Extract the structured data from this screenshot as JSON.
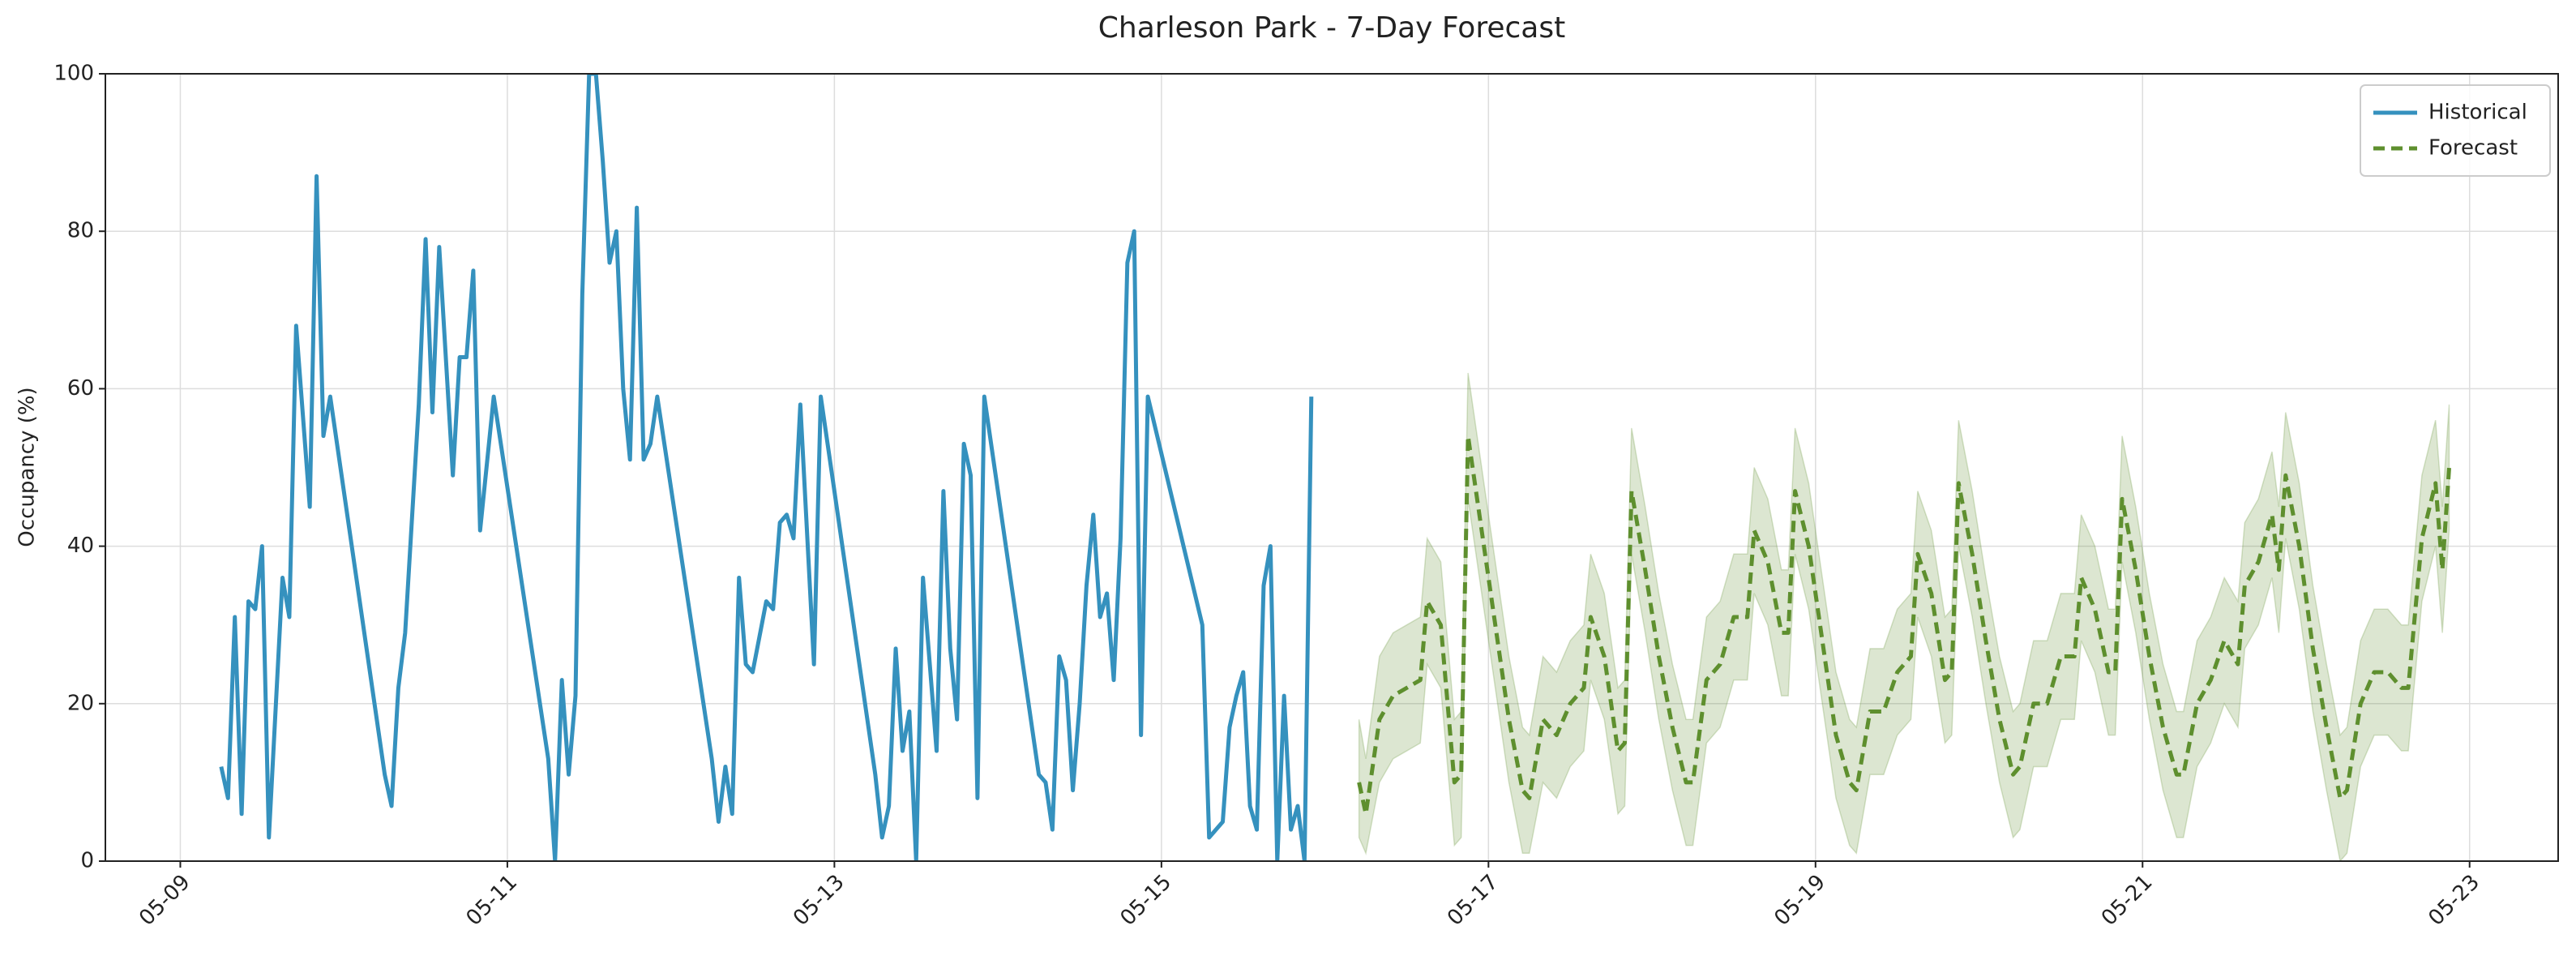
{
  "chart_data": {
    "type": "line",
    "title": "Charleson Park - 7-Day Forecast",
    "ylabel": "Occupancy (%)",
    "xlim": [
      "05-08 13:00",
      "05-23 13:00"
    ],
    "xticks": [
      "05-09",
      "05-11",
      "05-13",
      "05-15",
      "05-17",
      "05-19",
      "05-21",
      "05-23"
    ],
    "ylim": [
      0,
      100
    ],
    "yticks": [
      0,
      20,
      40,
      60,
      80,
      100
    ],
    "grid": true,
    "legend": "upper right",
    "series": [
      {
        "name": "Historical",
        "color": "#3591be",
        "style": "solid",
        "x": [
          "05-09 06:00",
          "05-09 07:00",
          "05-09 08:00",
          "05-09 09:00",
          "05-09 10:00",
          "05-09 11:00",
          "05-09 12:00",
          "05-09 13:00",
          "05-09 15:00",
          "05-09 16:00",
          "05-09 17:00",
          "05-09 19:00",
          "05-09 20:00",
          "05-09 21:00",
          "05-09 22:00",
          "05-10 06:00",
          "05-10 07:00",
          "05-10 08:00",
          "05-10 09:00",
          "05-10 11:00",
          "05-10 12:00",
          "05-10 13:00",
          "05-10 14:00",
          "05-10 16:00",
          "05-10 17:00",
          "05-10 18:00",
          "05-10 19:00",
          "05-10 20:00",
          "05-10 22:00",
          "05-11 06:00",
          "05-11 07:00",
          "05-11 08:00",
          "05-11 09:00",
          "05-11 10:00",
          "05-11 11:00",
          "05-11 12:00",
          "05-11 13:00",
          "05-11 14:00",
          "05-11 15:00",
          "05-11 16:00",
          "05-11 17:00",
          "05-11 18:00",
          "05-11 19:00",
          "05-11 20:00",
          "05-11 21:00",
          "05-11 22:00",
          "05-12 06:00",
          "05-12 07:00",
          "05-12 08:00",
          "05-12 09:00",
          "05-12 10:00",
          "05-12 11:00",
          "05-12 12:00",
          "05-12 14:00",
          "05-12 15:00",
          "05-12 16:00",
          "05-12 17:00",
          "05-12 18:00",
          "05-12 19:00",
          "05-12 21:00",
          "05-12 22:00",
          "05-13 06:00",
          "05-13 07:00",
          "05-13 08:00",
          "05-13 09:00",
          "05-13 10:00",
          "05-13 11:00",
          "05-13 12:00",
          "05-13 13:00",
          "05-13 15:00",
          "05-13 16:00",
          "05-13 17:00",
          "05-13 18:00",
          "05-13 19:00",
          "05-13 20:00",
          "05-13 21:00",
          "05-13 22:00",
          "05-14 06:00",
          "05-14 07:00",
          "05-14 08:00",
          "05-14 09:00",
          "05-14 10:00",
          "05-14 11:00",
          "05-14 12:00",
          "05-14 13:00",
          "05-14 14:00",
          "05-14 15:00",
          "05-14 16:00",
          "05-14 17:00",
          "05-14 18:00",
          "05-14 19:00",
          "05-14 20:00",
          "05-14 21:00",
          "05-14 22:00",
          "05-15 06:00",
          "05-15 07:00",
          "05-15 09:00",
          "05-15 10:00",
          "05-15 11:00",
          "05-15 12:00",
          "05-15 13:00",
          "05-15 14:00",
          "05-15 15:00",
          "05-15 16:00",
          "05-15 17:00",
          "05-15 18:00",
          "05-15 19:00",
          "05-15 20:00",
          "05-15 21:00",
          "05-15 22:00"
        ],
        "values": [
          12,
          8,
          31,
          6,
          33,
          32,
          40,
          3,
          36,
          31,
          68,
          45,
          87,
          54,
          59,
          11,
          7,
          22,
          29,
          58,
          79,
          57,
          78,
          49,
          64,
          64,
          75,
          42,
          59,
          13,
          0,
          23,
          11,
          21,
          72,
          100,
          100,
          89,
          76,
          80,
          60,
          51,
          83,
          51,
          53,
          59,
          13,
          5,
          12,
          6,
          36,
          25,
          24,
          33,
          32,
          43,
          44,
          41,
          58,
          25,
          59,
          11,
          3,
          7,
          27,
          14,
          19,
          0,
          36,
          14,
          47,
          27,
          18,
          53,
          49,
          8,
          59,
          11,
          10,
          4,
          26,
          23,
          9,
          20,
          35,
          44,
          31,
          34,
          23,
          41,
          76,
          80,
          16,
          59,
          30,
          3,
          5,
          17,
          21,
          24,
          7,
          4,
          35,
          40,
          0,
          21,
          4,
          7,
          0,
          59
        ]
      },
      {
        "name": "Forecast",
        "color": "#5e8f2e",
        "style": "dashed",
        "x": [
          "05-16 05:00",
          "05-16 06:00",
          "05-16 08:00",
          "05-16 10:00",
          "05-16 12:00",
          "05-16 14:00",
          "05-16 15:00",
          "05-16 17:00",
          "05-16 19:00",
          "05-16 20:00",
          "05-16 21:00",
          "05-16 23:00",
          "05-17 01:00",
          "05-17 03:00",
          "05-17 05:00",
          "05-17 06:00",
          "05-17 08:00",
          "05-17 10:00",
          "05-17 12:00",
          "05-17 14:00",
          "05-17 15:00",
          "05-17 17:00",
          "05-17 19:00",
          "05-17 20:00",
          "05-17 21:00",
          "05-17 23:00",
          "05-18 01:00",
          "05-18 03:00",
          "05-18 05:00",
          "05-18 06:00",
          "05-18 08:00",
          "05-18 10:00",
          "05-18 12:00",
          "05-18 14:00",
          "05-18 15:00",
          "05-18 17:00",
          "05-18 19:00",
          "05-18 20:00",
          "05-18 21:00",
          "05-18 23:00",
          "05-19 01:00",
          "05-19 03:00",
          "05-19 05:00",
          "05-19 06:00",
          "05-19 08:00",
          "05-19 10:00",
          "05-19 12:00",
          "05-19 14:00",
          "05-19 15:00",
          "05-19 17:00",
          "05-19 19:00",
          "05-19 20:00",
          "05-19 21:00",
          "05-19 23:00",
          "05-20 01:00",
          "05-20 03:00",
          "05-20 05:00",
          "05-20 06:00",
          "05-20 08:00",
          "05-20 10:00",
          "05-20 12:00",
          "05-20 14:00",
          "05-20 15:00",
          "05-20 17:00",
          "05-20 19:00",
          "05-20 20:00",
          "05-20 21:00",
          "05-20 23:00",
          "05-21 01:00",
          "05-21 03:00",
          "05-21 05:00",
          "05-21 06:00",
          "05-21 08:00",
          "05-21 10:00",
          "05-21 12:00",
          "05-21 14:00",
          "05-21 15:00",
          "05-21 17:00",
          "05-21 19:00",
          "05-21 20:00",
          "05-21 21:00",
          "05-21 23:00",
          "05-22 01:00",
          "05-22 03:00",
          "05-22 05:00",
          "05-22 06:00",
          "05-22 08:00",
          "05-22 10:00",
          "05-22 12:00",
          "05-22 14:00",
          "05-22 15:00",
          "05-22 17:00",
          "05-22 19:00",
          "05-22 20:00",
          "05-22 21:00"
        ],
        "values": [
          10,
          6,
          18,
          21,
          22,
          23,
          33,
          30,
          10,
          11,
          54,
          42,
          30,
          18,
          9,
          8,
          18,
          16,
          20,
          22,
          31,
          26,
          14,
          15,
          47,
          37,
          26,
          17,
          10,
          10,
          23,
          25,
          31,
          31,
          42,
          38,
          29,
          29,
          47,
          40,
          28,
          16,
          10,
          9,
          19,
          19,
          24,
          26,
          39,
          34,
          23,
          24,
          48,
          39,
          28,
          18,
          11,
          12,
          20,
          20,
          26,
          26,
          36,
          32,
          24,
          24,
          46,
          37,
          26,
          17,
          11,
          11,
          20,
          23,
          28,
          25,
          35,
          38,
          44,
          37,
          49,
          40,
          27,
          17,
          8,
          9,
          20,
          24,
          24,
          22,
          22,
          41,
          48,
          37,
          50
        ],
        "lower": [
          3,
          1,
          10,
          13,
          14,
          15,
          25,
          22,
          2,
          3,
          46,
          34,
          22,
          10,
          1,
          1,
          10,
          8,
          12,
          14,
          23,
          18,
          6,
          7,
          39,
          29,
          18,
          9,
          2,
          2,
          15,
          17,
          23,
          23,
          34,
          30,
          21,
          21,
          39,
          32,
          20,
          8,
          2,
          1,
          11,
          11,
          16,
          18,
          31,
          26,
          15,
          16,
          40,
          31,
          20,
          10,
          3,
          4,
          12,
          12,
          18,
          18,
          28,
          24,
          16,
          16,
          38,
          29,
          18,
          9,
          3,
          3,
          12,
          15,
          20,
          17,
          27,
          30,
          36,
          29,
          41,
          32,
          19,
          9,
          0,
          1,
          12,
          16,
          16,
          14,
          14,
          33,
          40,
          29,
          42
        ],
        "upper": [
          18,
          13,
          26,
          29,
          30,
          31,
          41,
          38,
          18,
          19,
          62,
          50,
          38,
          26,
          17,
          16,
          26,
          24,
          28,
          30,
          39,
          34,
          22,
          23,
          55,
          45,
          34,
          25,
          18,
          18,
          31,
          33,
          39,
          39,
          50,
          46,
          37,
          37,
          55,
          48,
          36,
          24,
          18,
          17,
          27,
          27,
          32,
          34,
          47,
          42,
          31,
          32,
          56,
          47,
          36,
          26,
          19,
          20,
          28,
          28,
          34,
          34,
          44,
          40,
          32,
          32,
          54,
          45,
          34,
          25,
          19,
          19,
          28,
          31,
          36,
          33,
          43,
          46,
          52,
          45,
          57,
          48,
          35,
          25,
          16,
          17,
          28,
          32,
          32,
          30,
          30,
          49,
          56,
          45,
          58
        ]
      }
    ]
  }
}
